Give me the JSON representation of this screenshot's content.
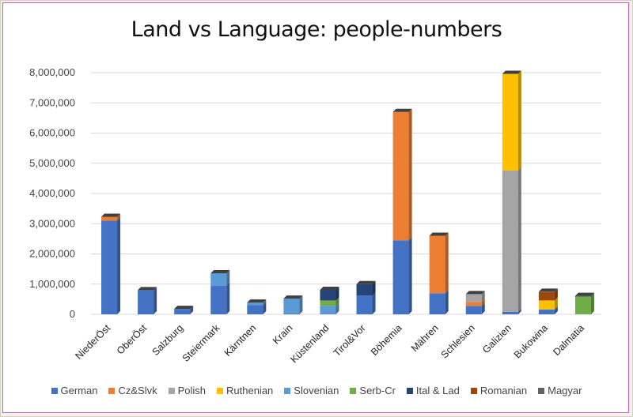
{
  "chart_data": {
    "type": "bar",
    "stacked": true,
    "title": "Land vs Language: people-numbers",
    "xlabel": "",
    "ylabel": "",
    "ylim": [
      0,
      8000000
    ],
    "yticks": [
      "0",
      "1,000,000",
      "2,000,000",
      "3,000,000",
      "4,000,000",
      "5,000,000",
      "6,000,000",
      "7,000,000",
      "8,000,000"
    ],
    "grid": true,
    "legend_position": "bottom",
    "categories": [
      "NiederÖst",
      "OberÖst",
      "Salzburg",
      "Steiermark",
      "Kärntnen",
      "Krain",
      "Küstenland",
      "Tirol&Vor",
      "Böhemia",
      "Mähren",
      "Schlesien",
      "Galizien",
      "Bukowina",
      "Dalmatia"
    ],
    "series": [
      {
        "name": "German",
        "color": "#4472c4",
        "values": [
          3100000,
          800000,
          180000,
          950000,
          300000,
          30000,
          10000,
          620000,
          2450000,
          700000,
          280000,
          80000,
          160000,
          0
        ]
      },
      {
        "name": "Cz&Slvk",
        "color": "#ed7d31",
        "values": [
          130000,
          0,
          0,
          0,
          0,
          0,
          0,
          0,
          4250000,
          1900000,
          130000,
          0,
          0,
          0
        ]
      },
      {
        "name": "Polish",
        "color": "#a5a5a5",
        "values": [
          0,
          0,
          0,
          0,
          0,
          0,
          0,
          0,
          0,
          0,
          260000,
          4680000,
          0,
          0
        ]
      },
      {
        "name": "Ruthenian",
        "color": "#ffc000",
        "values": [
          0,
          0,
          0,
          0,
          0,
          0,
          0,
          0,
          0,
          0,
          0,
          3200000,
          300000,
          0
        ]
      },
      {
        "name": "Slovenian",
        "color": "#5b9bd5",
        "values": [
          0,
          0,
          0,
          410000,
          90000,
          490000,
          270000,
          0,
          0,
          0,
          0,
          0,
          0,
          0
        ]
      },
      {
        "name": "Serb-Cr",
        "color": "#70ad47",
        "values": [
          0,
          0,
          0,
          0,
          0,
          0,
          180000,
          0,
          0,
          0,
          0,
          0,
          0,
          590000
        ]
      },
      {
        "name": "Ital & Lad",
        "color": "#264478",
        "values": [
          0,
          0,
          0,
          0,
          0,
          0,
          350000,
          380000,
          0,
          0,
          0,
          0,
          0,
          20000
        ]
      },
      {
        "name": "Romanian",
        "color": "#9e480e",
        "values": [
          0,
          0,
          0,
          0,
          0,
          0,
          0,
          0,
          0,
          0,
          0,
          0,
          280000,
          0
        ]
      },
      {
        "name": "Magyar",
        "color": "#636363",
        "values": [
          0,
          0,
          0,
          0,
          0,
          0,
          0,
          0,
          0,
          0,
          0,
          0,
          10000,
          0
        ]
      }
    ]
  }
}
